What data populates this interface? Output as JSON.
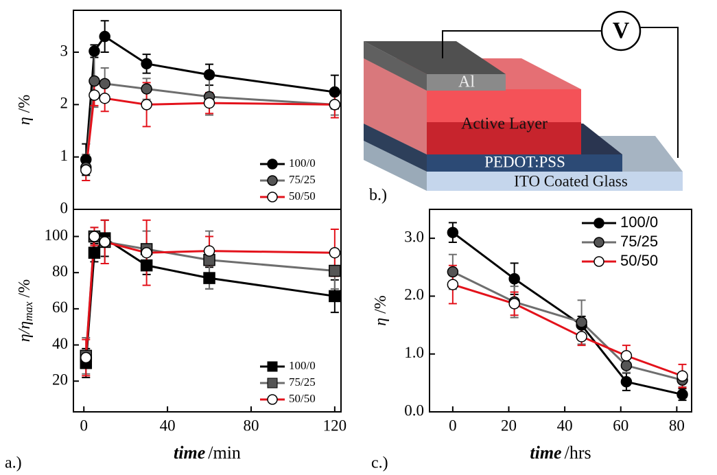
{
  "chart_data": [
    {
      "type": "line",
      "panel_label": "a.)",
      "x": [
        1,
        5,
        10,
        30,
        60,
        120
      ],
      "xlim": [
        -5,
        123
      ],
      "ylim": [
        0,
        3.8
      ],
      "yticks": [
        0,
        1,
        2,
        3
      ],
      "ylabel": {
        "symbol": "η",
        "unit": "/%"
      },
      "legend": "lower right",
      "series": [
        {
          "name": "100/0",
          "color": "#000000",
          "marker": "circle",
          "marker_fill": "#000000",
          "values": [
            0.95,
            3.02,
            3.3,
            2.78,
            2.57,
            2.24
          ],
          "errors": [
            0.3,
            0.12,
            0.3,
            0.18,
            0.2,
            0.32
          ]
        },
        {
          "name": "75/25",
          "color": "#6e6e6e",
          "marker": "circle",
          "marker_fill": "#555555",
          "values": [
            0.8,
            2.45,
            2.4,
            2.3,
            2.15,
            2.0
          ],
          "errors": [
            0.25,
            0.5,
            0.3,
            0.2,
            0.35,
            0.2
          ]
        },
        {
          "name": "50/50",
          "color": "#e3121b",
          "marker": "circle",
          "marker_fill": "#ffffff",
          "values": [
            0.75,
            2.18,
            2.12,
            2.0,
            2.03,
            2.0
          ],
          "errors": [
            0.2,
            0.2,
            0.25,
            0.42,
            0.2,
            0.25
          ]
        }
      ]
    },
    {
      "type": "line",
      "x": [
        1,
        5,
        10,
        30,
        60,
        120
      ],
      "xlim": [
        -5,
        123
      ],
      "xticks": [
        0,
        40,
        80,
        120
      ],
      "ylim": [
        3,
        115
      ],
      "yticks": [
        20,
        40,
        60,
        80,
        100
      ],
      "ylabel": {
        "symbol": "η/η",
        "sub": "max",
        "unit": "/%"
      },
      "xlabel": {
        "symbol": "time",
        "unit": "/min"
      },
      "legend": "lower right",
      "series": [
        {
          "name": "100/0",
          "color": "#000000",
          "marker": "square",
          "marker_fill": "#000000",
          "values": [
            30,
            91,
            99,
            84,
            77,
            67
          ],
          "errors": [
            8,
            5,
            10,
            5,
            6,
            9
          ]
        },
        {
          "name": "75/25",
          "color": "#6e6e6e",
          "marker": "square",
          "marker_fill": "#555555",
          "values": [
            34,
            100,
            97,
            93,
            87,
            81
          ],
          "errors": [
            10,
            5,
            12,
            10,
            16,
            10
          ]
        },
        {
          "name": "50/50",
          "color": "#e3121b",
          "marker": "circle",
          "marker_fill": "#ffffff",
          "values": [
            33,
            100,
            97,
            91,
            92,
            91
          ],
          "errors": [
            10,
            5,
            12,
            18,
            8,
            13
          ]
        }
      ]
    },
    {
      "type": "line",
      "panel_label": "c.)",
      "x": [
        0,
        22,
        46,
        62,
        82
      ],
      "xlim": [
        -8.3,
        85.3
      ],
      "xticks": [
        0,
        20,
        40,
        60,
        80
      ],
      "ylim": [
        0,
        3.5
      ],
      "yticks": [
        {
          "value": 0,
          "label": "0.0"
        },
        {
          "value": 1,
          "label": "1.0"
        },
        {
          "value": 2,
          "label": "2.0"
        },
        {
          "value": 3,
          "label": "3.0"
        }
      ],
      "ylabel": {
        "symbol": "η",
        "unit": "/%"
      },
      "xlabel": {
        "symbol": "time",
        "unit": "/hrs"
      },
      "legend": "upper right",
      "series": [
        {
          "name": "100/0",
          "color": "#000000",
          "marker": "circle",
          "marker_fill": "#000000",
          "values": [
            3.1,
            2.3,
            1.5,
            0.52,
            0.3
          ],
          "errors": [
            0.17,
            0.27,
            0.15,
            0.15,
            0.1
          ]
        },
        {
          "name": "75/25",
          "color": "#6e6e6e",
          "marker": "circle",
          "marker_fill": "#555555",
          "values": [
            2.42,
            1.9,
            1.55,
            0.8,
            0.55
          ],
          "errors": [
            0.3,
            0.27,
            0.38,
            0.12,
            0.12
          ]
        },
        {
          "name": "50/50",
          "color": "#e3121b",
          "marker": "circle",
          "marker_fill": "#ffffff",
          "values": [
            2.2,
            1.87,
            1.3,
            0.97,
            0.62
          ],
          "errors": [
            0.33,
            0.2,
            0.15,
            0.18,
            0.2
          ]
        }
      ]
    }
  ],
  "diagram": {
    "panel_label": "b.)",
    "meter": "V",
    "layers": [
      "Al",
      "Active Layer",
      "PEDOT:PSS",
      "ITO Coated Glass"
    ]
  }
}
